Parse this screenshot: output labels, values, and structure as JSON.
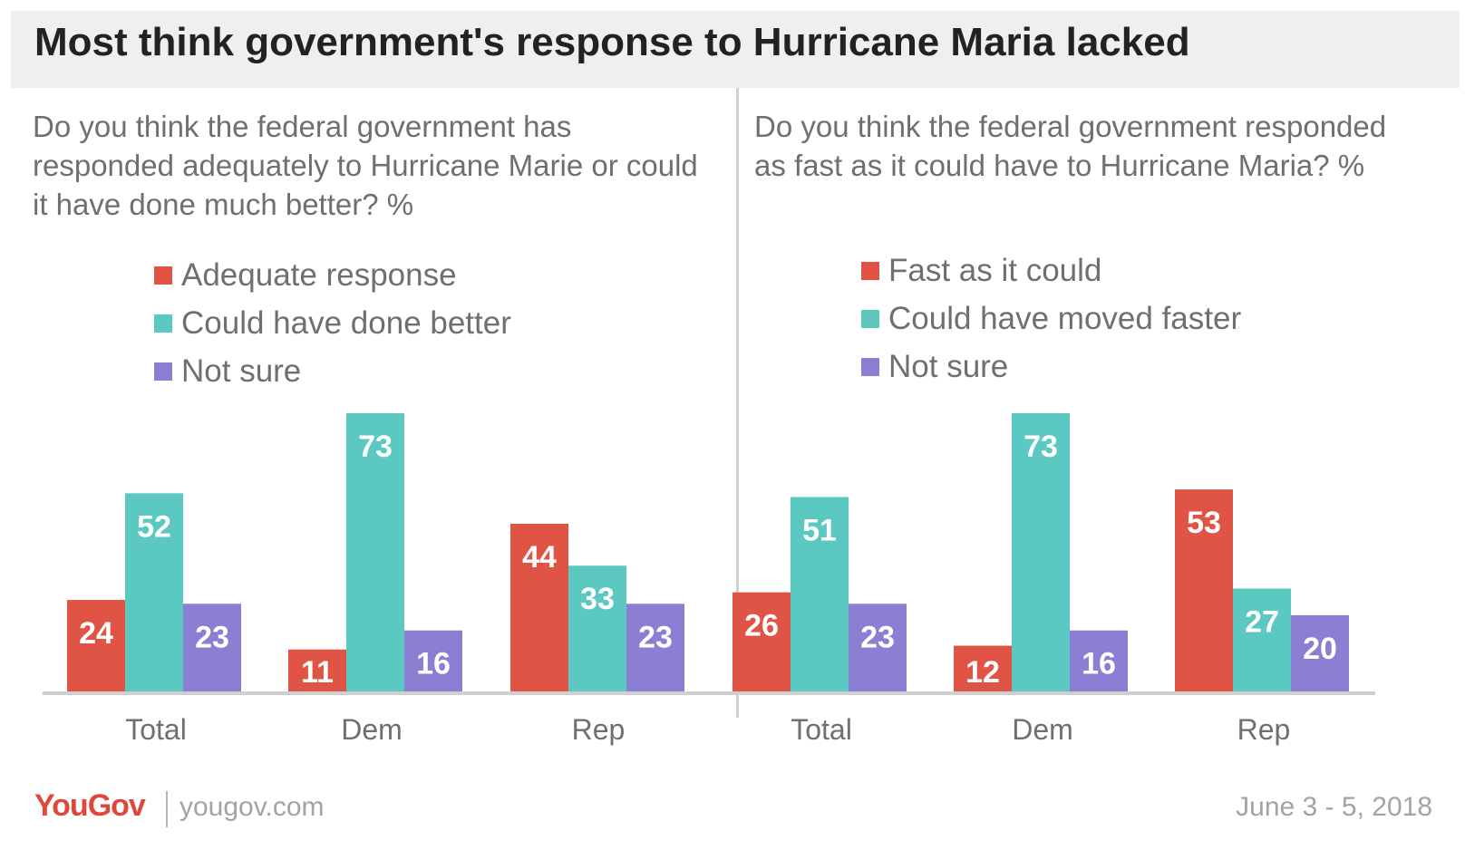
{
  "title": "Most think government's response to Hurricane Maria lacked",
  "colors": {
    "red": "#e05446",
    "teal": "#5bc8c2",
    "purple": "#8b7fd4",
    "title_bg": "#efeff1",
    "axis": "#cfcfcf",
    "label_text": "#6f6f6f"
  },
  "footer": {
    "logo": "YouGov",
    "site": "yougov.com",
    "date": "June 3 - 5, 2018"
  },
  "chart_data": [
    {
      "type": "bar",
      "title": "Do you think the federal government has responded adequately to Hurricane Marie or could it have done much better? %",
      "categories": [
        "Total",
        "Dem",
        "Rep"
      ],
      "series": [
        {
          "name": "Adequate response",
          "color": "#e05446",
          "values": [
            24,
            11,
            44
          ]
        },
        {
          "name": "Could have done better",
          "color": "#5bc8c2",
          "values": [
            52,
            73,
            33
          ]
        },
        {
          "name": "Not sure",
          "color": "#8b7fd4",
          "values": [
            23,
            16,
            23
          ]
        }
      ],
      "ylim": [
        0,
        73
      ],
      "grid": false,
      "legend_position": "top"
    },
    {
      "type": "bar",
      "title": "Do you think the federal government responded as fast as it could have to Hurricane Maria? %",
      "categories": [
        "Total",
        "Dem",
        "Rep"
      ],
      "series": [
        {
          "name": "Fast as it could",
          "color": "#e05446",
          "values": [
            26,
            12,
            53
          ]
        },
        {
          "name": "Could have moved faster",
          "color": "#5bc8c2",
          "values": [
            51,
            73,
            27
          ]
        },
        {
          "name": "Not sure",
          "color": "#8b7fd4",
          "values": [
            23,
            16,
            20
          ]
        }
      ],
      "ylim": [
        0,
        73
      ],
      "grid": false,
      "legend_position": "top"
    }
  ]
}
